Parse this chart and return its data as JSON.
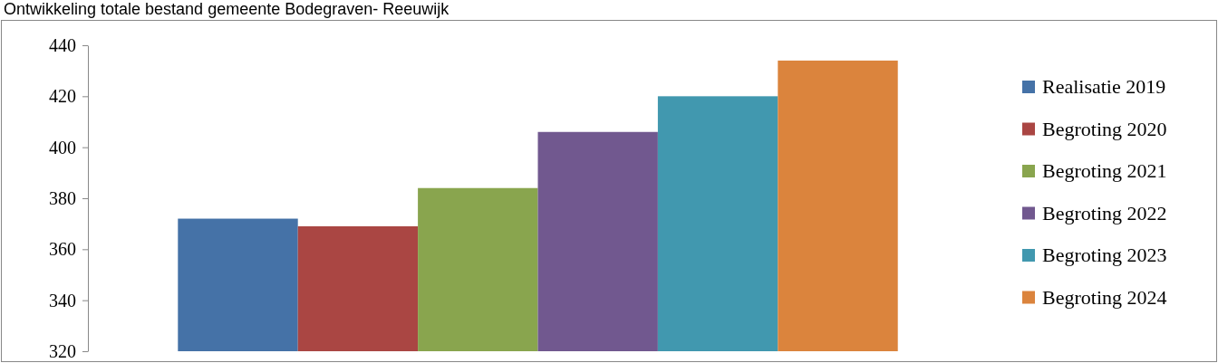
{
  "chart_data": {
    "type": "bar",
    "title": "Ontwikkeling totale bestand gemeente Bodegraven- Reeuwijk",
    "categories": [
      null
    ],
    "series": [
      {
        "name": "Realisatie 2019",
        "color": "#4572a7",
        "values": [
          372
        ]
      },
      {
        "name": "Begroting 2020",
        "color": "#aa4643",
        "values": [
          369
        ]
      },
      {
        "name": "Begroting 2021",
        "color": "#89a54e",
        "values": [
          384
        ]
      },
      {
        "name": "Begroting 2022",
        "color": "#71588f",
        "values": [
          406
        ]
      },
      {
        "name": "Begroting 2023",
        "color": "#4198af",
        "values": [
          420
        ]
      },
      {
        "name": "Begroting 2024",
        "color": "#db843d",
        "values": [
          434
        ]
      }
    ],
    "ylim": [
      320,
      440
    ],
    "yticks": [
      320,
      340,
      360,
      380,
      400,
      420,
      440
    ],
    "grid": false,
    "legend": "right"
  }
}
